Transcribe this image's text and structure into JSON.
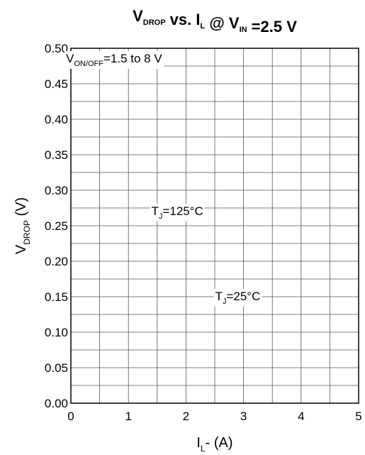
{
  "chart_data": {
    "type": "line",
    "title": {
      "parts": [
        {
          "text": "V",
          "sub": "DROP"
        },
        {
          "text": " vs. I",
          "sub": "L"
        },
        {
          "text": " @ V",
          "sub": "IN"
        },
        {
          "text": " =2.5 V",
          "sub": ""
        }
      ]
    },
    "xlabel": {
      "main": "I",
      "sub": "L",
      "rest": "- (A)"
    },
    "ylabel": {
      "main": "V",
      "sub": "DROP",
      "rest": " (V)"
    },
    "xlim": [
      0,
      5
    ],
    "ylim": [
      0,
      0.5
    ],
    "x_ticks": [
      0,
      1,
      2,
      3,
      4,
      5
    ],
    "x_tick_labels": [
      "0",
      "1",
      "2",
      "3",
      "4",
      "5"
    ],
    "y_ticks": [
      0,
      0.05,
      0.1,
      0.15,
      0.2,
      0.25,
      0.3,
      0.35,
      0.4,
      0.45,
      0.5
    ],
    "y_tick_labels": [
      "0.00",
      "0.05",
      "0.10",
      "0.15",
      "0.20",
      "0.25",
      "0.30",
      "0.35",
      "0.40",
      "0.45",
      "0.50"
    ],
    "grid": true,
    "minor_x_per_major": 2,
    "minor_y_per_major": 2,
    "series": [],
    "annotations": [
      {
        "main": "V",
        "sub": "ON/OFF",
        "rest": "=1.5 to 8 V",
        "x": 0.75,
        "y": 0.48
      },
      {
        "main": "T",
        "sub": "J",
        "rest": "=125°C",
        "x": 1.85,
        "y": 0.265
      },
      {
        "main": "T",
        "sub": "J",
        "rest": "=25°C",
        "x": 2.9,
        "y": 0.145
      }
    ]
  }
}
